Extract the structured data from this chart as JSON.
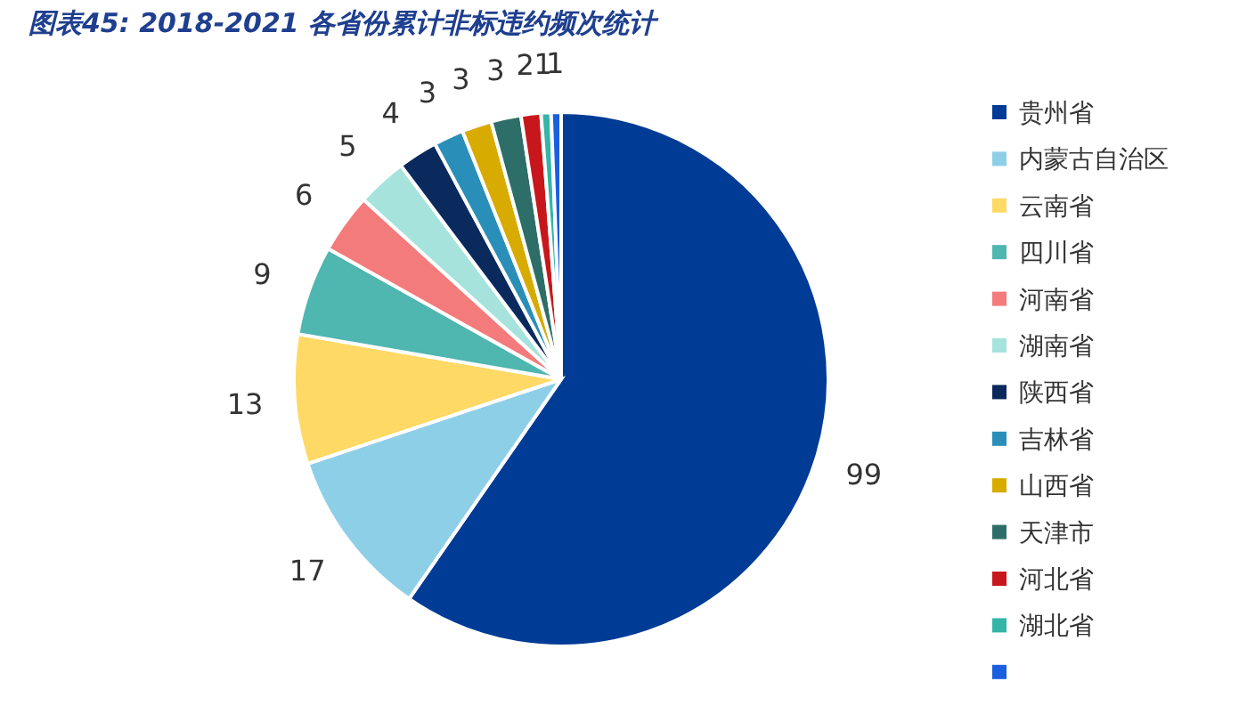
{
  "chart_data": {
    "type": "pie",
    "title": "图表45:  2018-2021 各省份累计非标违约频次统计",
    "categories": [
      "贵州省",
      "内蒙古自治区",
      "云南省",
      "四川省",
      "河南省",
      "湖南省",
      "陕西省",
      "吉林省",
      "山西省",
      "天津市",
      "河北省",
      "湖北省",
      null
    ],
    "values": [
      99,
      17,
      13,
      9,
      6,
      5,
      4,
      3,
      3,
      3,
      2,
      1,
      1
    ],
    "colors": [
      "#003b95",
      "#8ecfe8",
      "#ffd966",
      "#4fb6b0",
      "#f47b7b",
      "#a6e3dd",
      "#0a2a5e",
      "#2a8fb8",
      "#d8ab00",
      "#2e6e68",
      "#c8171c",
      "#35b5a8",
      "#1a5fe0"
    ],
    "data_labels": true,
    "legend": "right"
  }
}
